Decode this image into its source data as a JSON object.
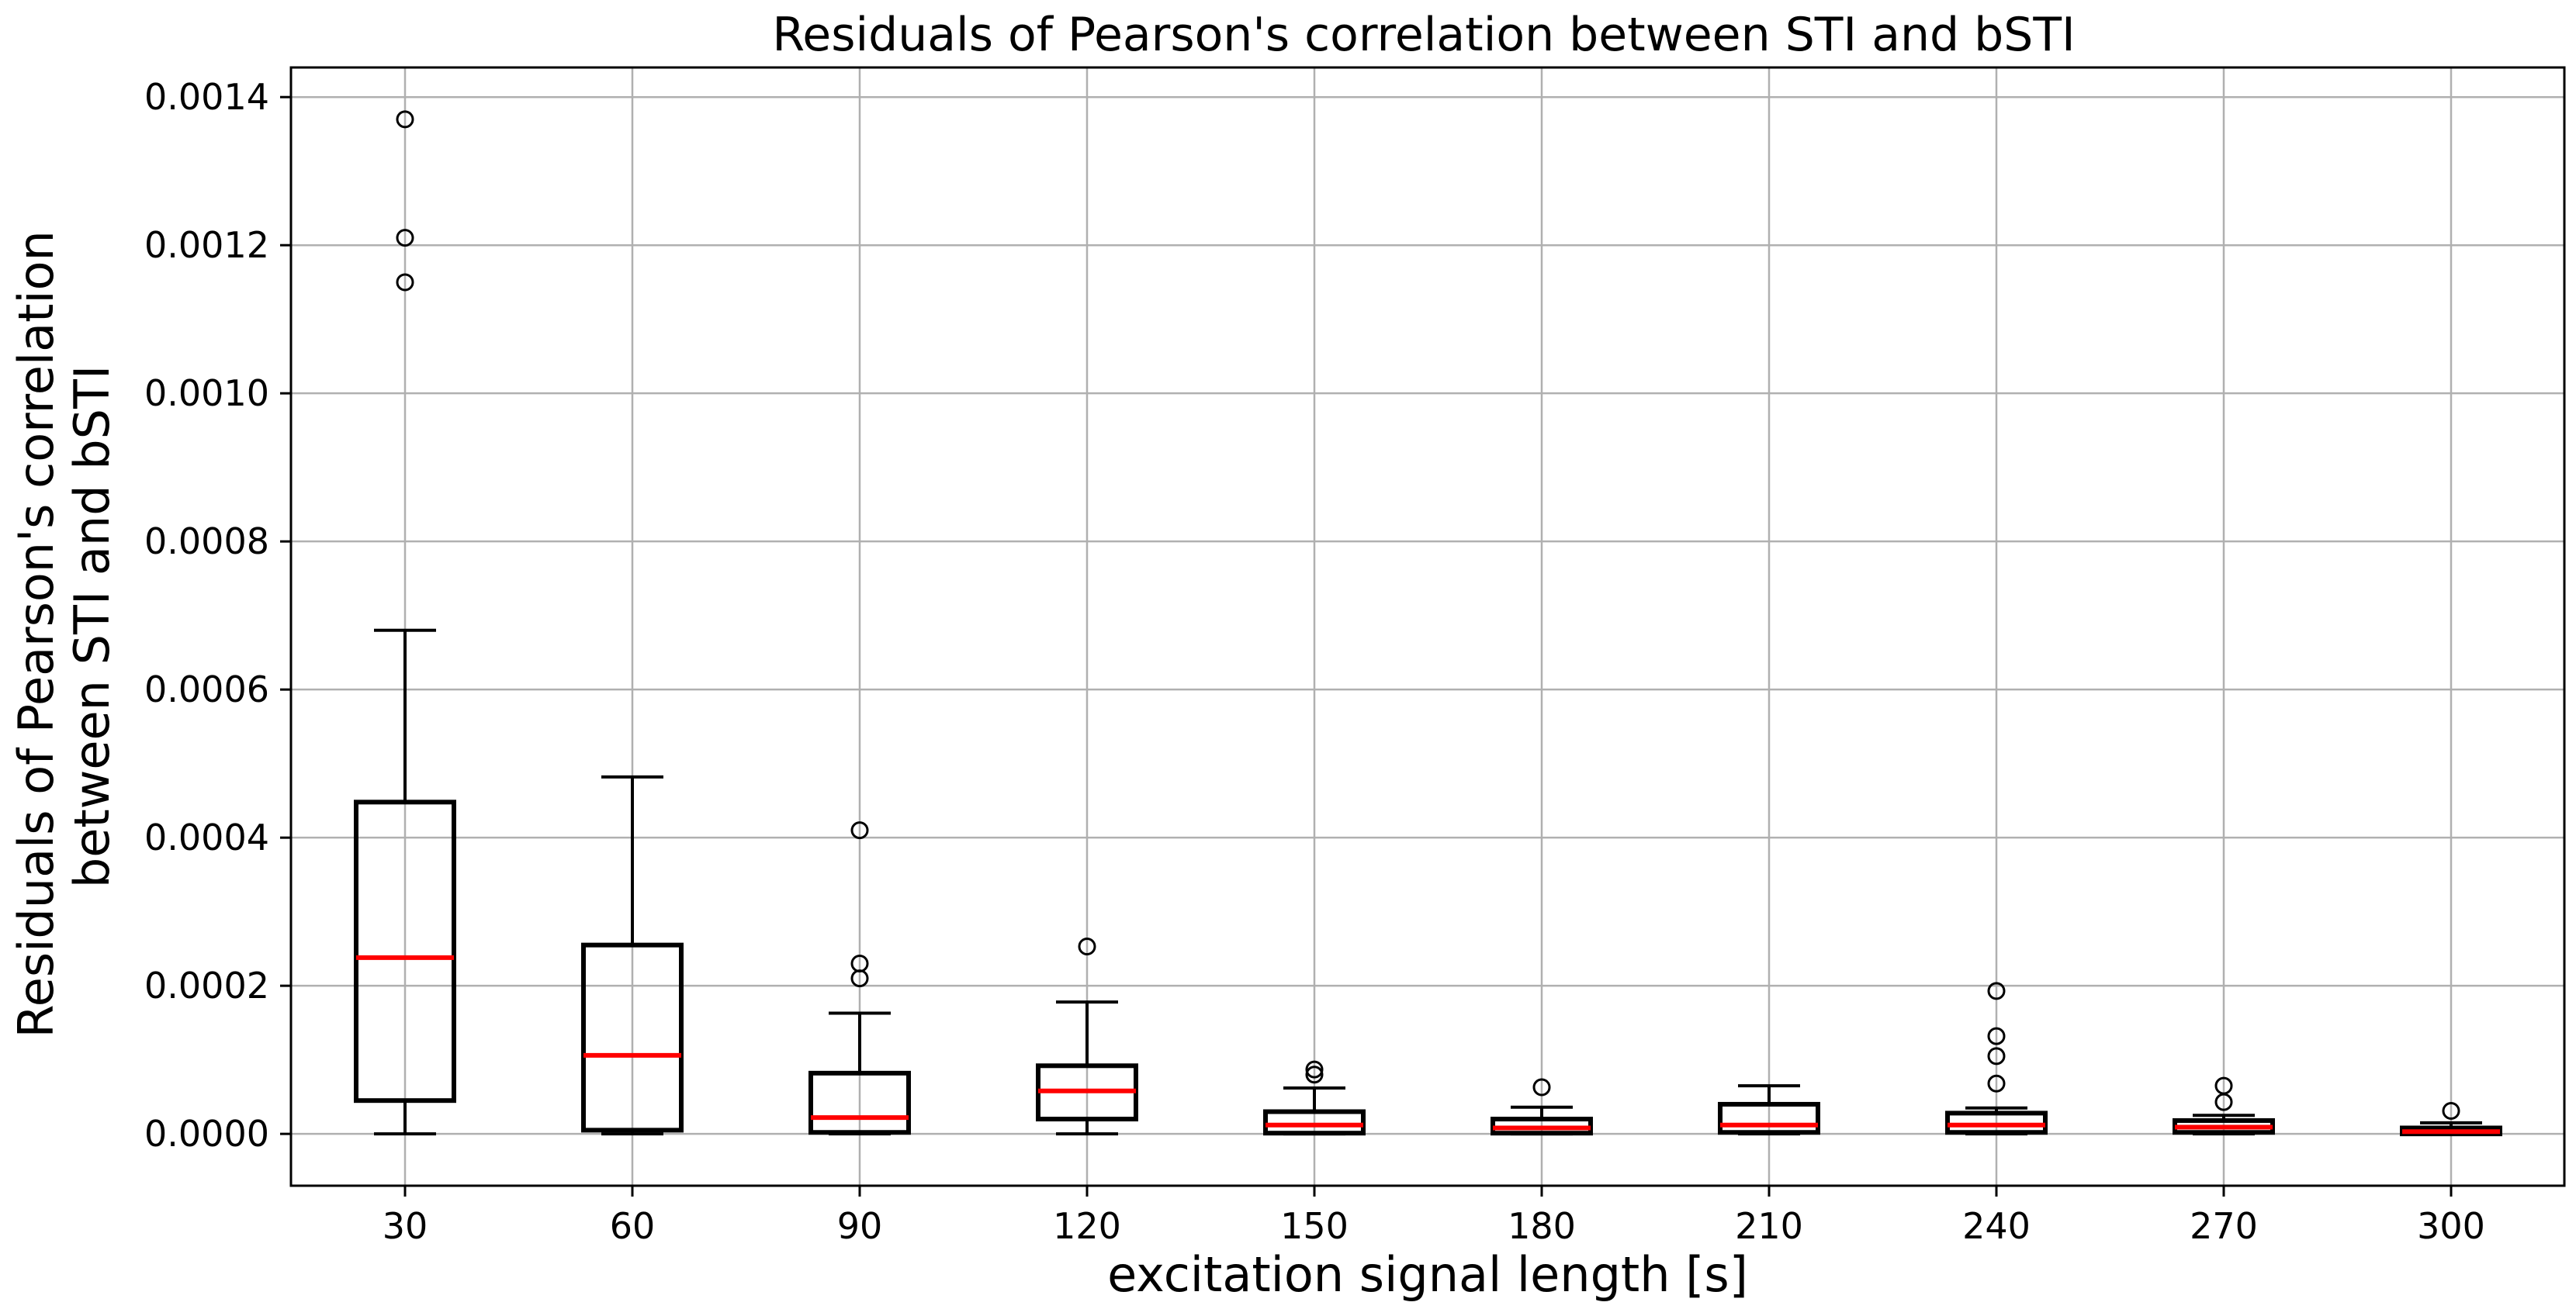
{
  "chart_data": {
    "type": "box",
    "title": "Residuals of Pearson's correlation between STI and bSTI",
    "xlabel": "excitation signal length [s]",
    "ylabel_lines": [
      "Residuals of Pearson's correlation",
      "between STI and bSTI"
    ],
    "ylim": [
      -7e-05,
      0.00144
    ],
    "y_ticks": [
      0.0,
      0.0002,
      0.0004,
      0.0006,
      0.0008,
      0.001,
      0.0012,
      0.0014
    ],
    "y_tick_labels": [
      "0.0000",
      "0.0002",
      "0.0004",
      "0.0006",
      "0.0008",
      "0.0010",
      "0.0012",
      "0.0014"
    ],
    "categories": [
      "30",
      "60",
      "90",
      "120",
      "150",
      "180",
      "210",
      "240",
      "270",
      "300"
    ],
    "grid": true,
    "colors": {
      "box": "#000000",
      "median": "#ff0000",
      "grid": "#b0b0b0"
    },
    "boxes": [
      {
        "whislo": 0.0,
        "q1": 4.5e-05,
        "med": 0.000238,
        "q3": 0.000448,
        "whishi": 0.00068,
        "fliers": [
          0.00115,
          0.00121,
          0.00137
        ]
      },
      {
        "whislo": 0.0,
        "q1": 5e-06,
        "med": 0.000106,
        "q3": 0.000255,
        "whishi": 0.000482,
        "fliers": []
      },
      {
        "whislo": 0.0,
        "q1": 2e-06,
        "med": 2.2e-05,
        "q3": 8.2e-05,
        "whishi": 0.000163,
        "fliers": [
          0.00021,
          0.00023,
          0.00041
        ]
      },
      {
        "whislo": 0.0,
        "q1": 2e-05,
        "med": 5.8e-05,
        "q3": 9.2e-05,
        "whishi": 0.000178,
        "fliers": [
          0.000253
        ]
      },
      {
        "whislo": 0.0,
        "q1": 1e-06,
        "med": 1.2e-05,
        "q3": 3e-05,
        "whishi": 6.2e-05,
        "fliers": [
          8e-05,
          8.7e-05
        ]
      },
      {
        "whislo": 0.0,
        "q1": 1e-06,
        "med": 8e-06,
        "q3": 2e-05,
        "whishi": 3.6e-05,
        "fliers": [
          6.3e-05
        ]
      },
      {
        "whislo": 0.0,
        "q1": 2e-06,
        "med": 1.2e-05,
        "q3": 4e-05,
        "whishi": 6.5e-05,
        "fliers": []
      },
      {
        "whislo": 0.0,
        "q1": 2e-06,
        "med": 1.2e-05,
        "q3": 2.8e-05,
        "whishi": 3.5e-05,
        "fliers": [
          6.8e-05,
          0.000105,
          0.000132,
          0.000193
        ]
      },
      {
        "whislo": 0.0,
        "q1": 2e-06,
        "med": 9e-06,
        "q3": 1.8e-05,
        "whishi": 2.5e-05,
        "fliers": [
          4.3e-05,
          6.5e-05
        ]
      },
      {
        "whislo": 0.0,
        "q1": 0.0,
        "med": 3e-06,
        "q3": 8e-06,
        "whishi": 1.5e-05,
        "fliers": [
          3.1e-05
        ]
      }
    ]
  }
}
